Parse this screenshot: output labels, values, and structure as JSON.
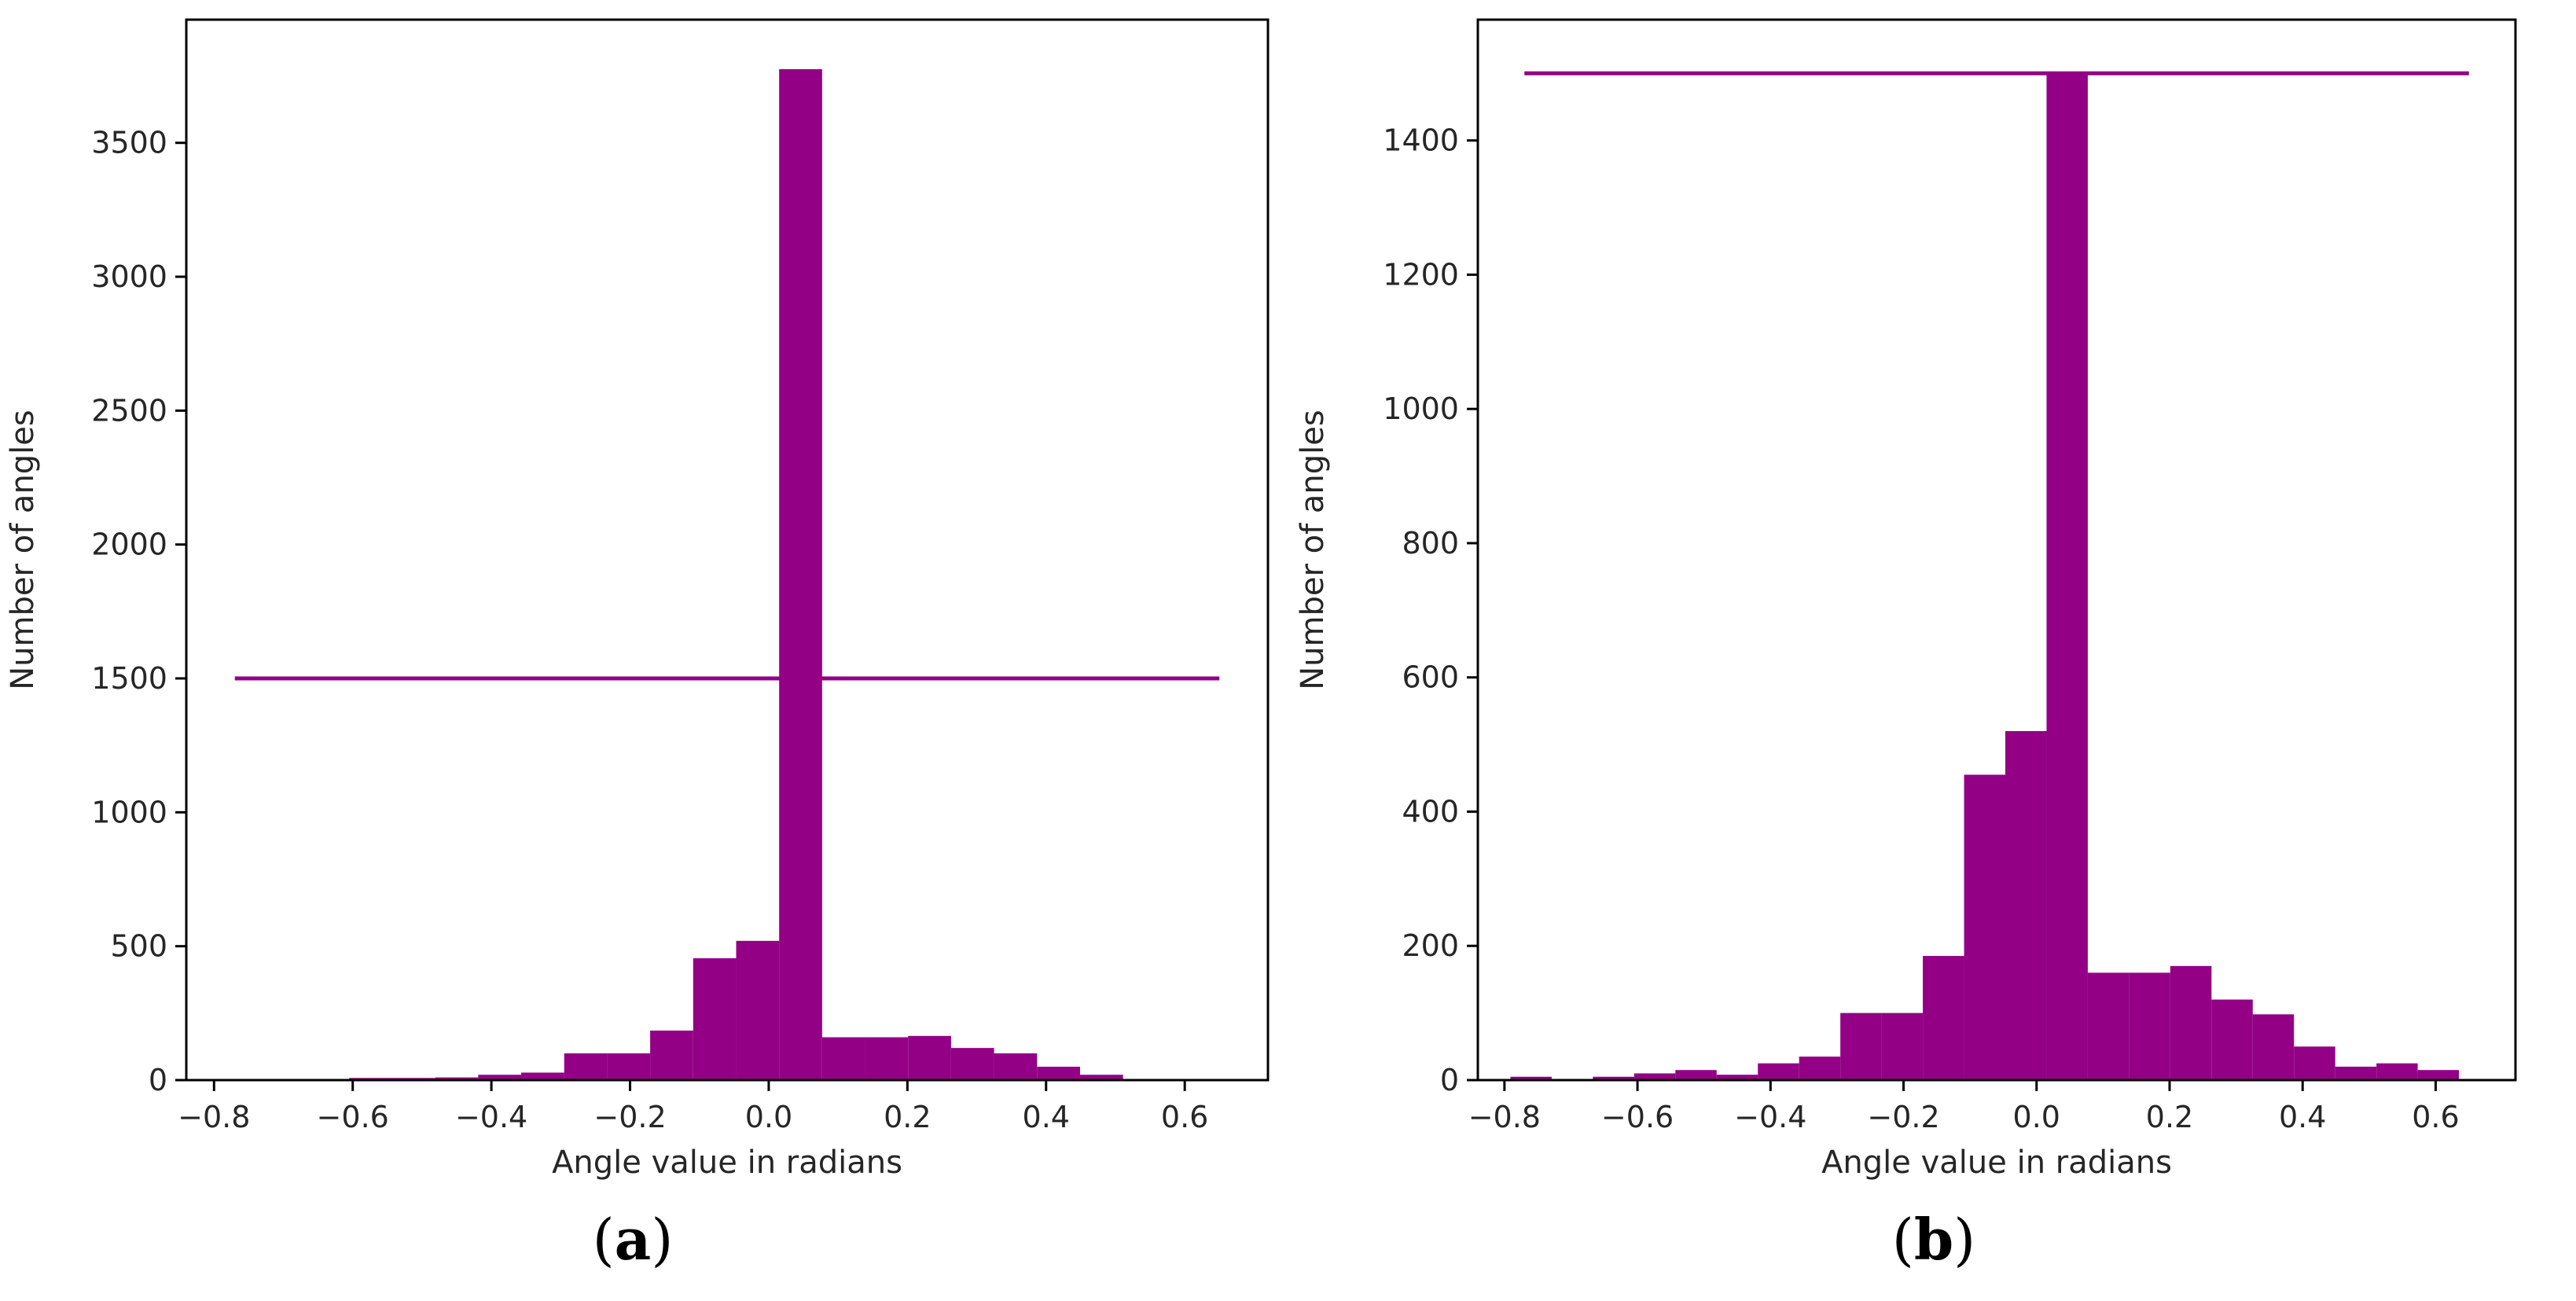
{
  "colors": {
    "bar": "#930085",
    "line": "#930085",
    "axis": "#000000",
    "text": "#262626"
  },
  "chart_data": [
    {
      "type": "bar",
      "panel_label": "a",
      "xlabel": "Angle value in radians",
      "ylabel": "Number of angles",
      "xlim": [
        -0.84,
        0.72
      ],
      "ylim": [
        0,
        3960
      ],
      "xticks": [
        -0.8,
        -0.6,
        -0.4,
        -0.2,
        0.0,
        0.2,
        0.4,
        0.6
      ],
      "xtick_labels": [
        "−0.8",
        "−0.6",
        "−0.4",
        "−0.2",
        "0.0",
        "0.2",
        "0.4",
        "0.6"
      ],
      "yticks": [
        0,
        500,
        1000,
        1500,
        2000,
        2500,
        3000,
        3500
      ],
      "ytick_labels": [
        "0",
        "500",
        "1000",
        "1500",
        "2000",
        "2500",
        "3000",
        "3500"
      ],
      "bar_width": 0.062,
      "x": [
        -0.72,
        -0.646,
        -0.572,
        -0.498,
        -0.424,
        -0.35,
        -0.276,
        -0.202,
        -0.128,
        -0.054,
        0.02,
        0.094,
        0.168,
        0.242,
        0.316,
        0.39,
        0.464,
        0.538,
        0.612,
        -0.572,
        -0.498,
        -0.424,
        -0.35,
        -0.276,
        -0.202,
        -0.128,
        -0.054,
        0.02
      ],
      "bar_x": [
        -0.574,
        -0.512,
        -0.45,
        -0.388,
        -0.326,
        -0.264,
        -0.202,
        -0.14,
        -0.078,
        -0.016,
        0.046,
        0.108,
        0.17,
        0.232,
        0.294,
        0.356,
        0.418,
        0.48
      ],
      "bar_values": [
        8,
        8,
        10,
        20,
        28,
        100,
        100,
        185,
        455,
        520,
        3775,
        160,
        160,
        165,
        120,
        100,
        50,
        20
      ],
      "hline": {
        "y": 1500,
        "xmin": -0.77,
        "xmax": 0.65
      }
    },
    {
      "type": "bar",
      "panel_label": "b",
      "xlabel": "Angle value in radians",
      "ylabel": "Number of angles",
      "xlim": [
        -0.84,
        0.72
      ],
      "ylim": [
        0,
        1580
      ],
      "xticks": [
        -0.8,
        -0.6,
        -0.4,
        -0.2,
        0.0,
        0.2,
        0.4,
        0.6
      ],
      "xtick_labels": [
        "−0.8",
        "−0.6",
        "−0.4",
        "−0.2",
        "0.0",
        "0.2",
        "0.4",
        "0.6"
      ],
      "yticks": [
        0,
        200,
        400,
        600,
        800,
        1000,
        1200,
        1400
      ],
      "ytick_labels": [
        "0",
        "200",
        "400",
        "600",
        "800",
        "1000",
        "1200",
        "1400"
      ],
      "bar_width": 0.062,
      "bar_x": [
        -0.76,
        -0.636,
        -0.574,
        -0.512,
        -0.45,
        -0.388,
        -0.326,
        -0.264,
        -0.202,
        -0.14,
        -0.078,
        -0.016,
        0.046,
        0.108,
        0.17,
        0.232,
        0.294,
        0.356,
        0.418,
        0.48,
        0.542,
        0.604
      ],
      "bar_values": [
        5,
        5,
        10,
        15,
        8,
        25,
        35,
        100,
        100,
        185,
        455,
        520,
        1500,
        160,
        160,
        170,
        120,
        98,
        50,
        20,
        25,
        15
      ],
      "hline": {
        "y": 1500,
        "xmin": -0.77,
        "xmax": 0.65
      }
    }
  ]
}
